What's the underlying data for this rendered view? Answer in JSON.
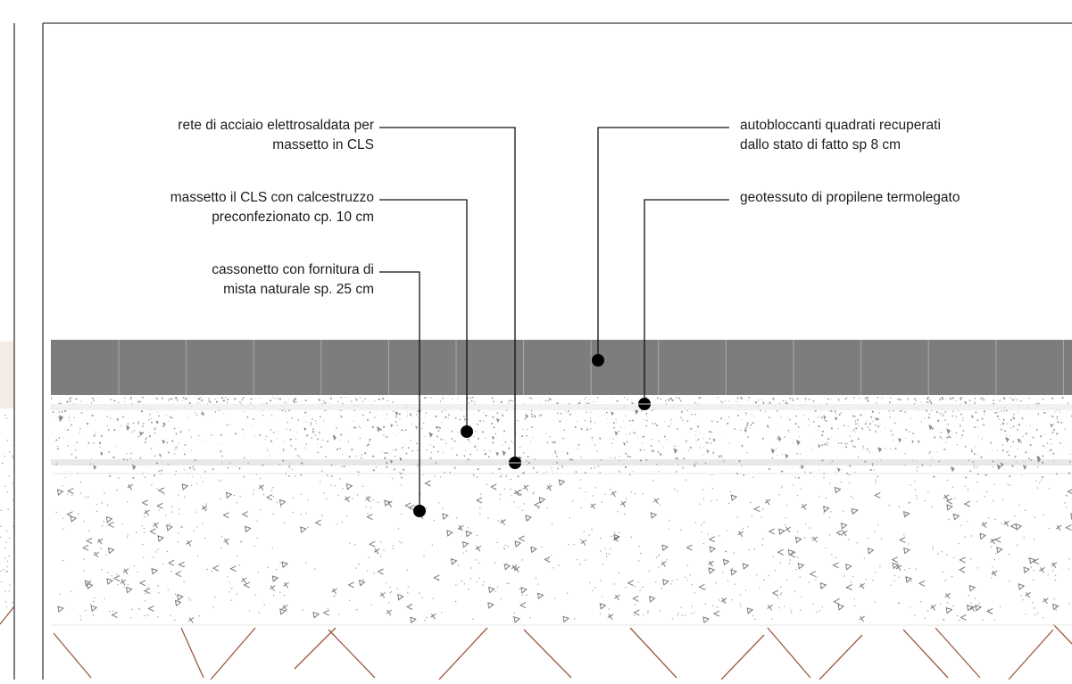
{
  "diagram": {
    "title": "",
    "colors": {
      "frame": "#3a3a3a",
      "paver": "#7d7d7d",
      "paver_joint": "#a9a9a9",
      "aggregate": "#8a8a8a",
      "soil_hatch": "#9b5a3f",
      "side_band": "#f4ece4",
      "leader": "#111111",
      "dot": "#000000",
      "label_text": "#1c1c1c"
    },
    "layers": [
      {
        "id": "paver",
        "name": "autobloccanti"
      },
      {
        "id": "geotextile",
        "name": "geotessuto"
      },
      {
        "id": "concrete-screed",
        "name": "massetto"
      },
      {
        "id": "mesh",
        "name": "rete"
      },
      {
        "id": "gravel-bed",
        "name": "cassonetto"
      },
      {
        "id": "subgrade",
        "name": "terreno"
      }
    ],
    "labels_left": [
      {
        "id": "rete",
        "text": "rete di acciaio elettrosaldata per\nmassetto in CLS"
      },
      {
        "id": "massetto",
        "text": "massetto il CLS con calcestruzzo\npreconfezionato cp. 10 cm"
      },
      {
        "id": "cassonetto",
        "text": "cassonetto con fornitura di\nmista naturale sp. 25 cm"
      }
    ],
    "labels_right": [
      {
        "id": "autobloccanti",
        "text": "autobloccanti quadrati recuperati\ndallo stato di fatto sp 8 cm"
      },
      {
        "id": "geotessuto",
        "text": "geotessuto di propilene termolegato"
      }
    ]
  }
}
